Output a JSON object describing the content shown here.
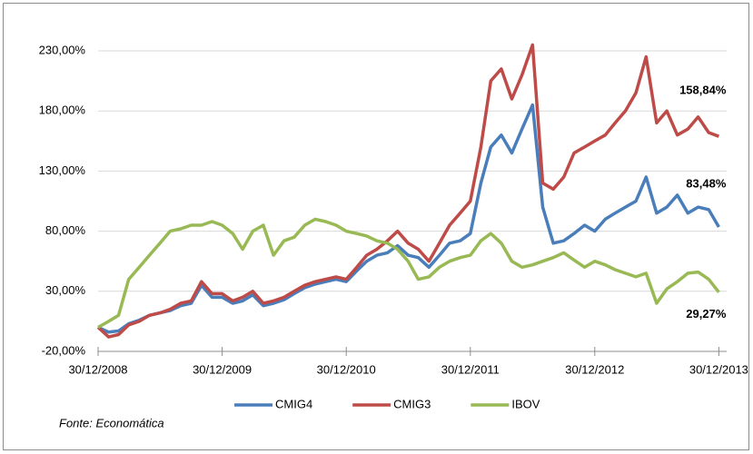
{
  "chart_data": {
    "type": "line",
    "x": [
      "2008-12-30",
      "2009-01-30",
      "2009-02-28",
      "2009-03-30",
      "2009-04-30",
      "2009-05-30",
      "2009-06-30",
      "2009-07-30",
      "2009-08-30",
      "2009-09-30",
      "2009-10-30",
      "2009-11-30",
      "2009-12-30",
      "2010-01-30",
      "2010-02-28",
      "2010-03-30",
      "2010-04-30",
      "2010-05-30",
      "2010-06-30",
      "2010-07-30",
      "2010-08-30",
      "2010-09-30",
      "2010-10-30",
      "2010-11-30",
      "2010-12-30",
      "2011-01-30",
      "2011-02-28",
      "2011-03-30",
      "2011-04-30",
      "2011-05-30",
      "2011-06-30",
      "2011-07-30",
      "2011-08-30",
      "2011-09-30",
      "2011-10-30",
      "2011-11-30",
      "2011-12-30",
      "2012-01-30",
      "2012-02-28",
      "2012-03-30",
      "2012-04-30",
      "2012-05-30",
      "2012-06-30",
      "2012-07-30",
      "2012-08-30",
      "2012-09-30",
      "2012-10-30",
      "2012-11-30",
      "2012-12-30",
      "2013-01-30",
      "2013-02-28",
      "2013-03-30",
      "2013-04-30",
      "2013-05-30",
      "2013-06-30",
      "2013-07-30",
      "2013-08-30",
      "2013-09-30",
      "2013-10-30",
      "2013-11-30",
      "2013-12-30"
    ],
    "series": [
      {
        "name": "CMIG4",
        "color": "#4a7ebb",
        "end_label": "83,48%",
        "values": [
          0,
          -4,
          -3,
          3,
          6,
          10,
          12,
          14,
          18,
          20,
          35,
          25,
          25,
          20,
          22,
          27,
          18,
          20,
          23,
          28,
          33,
          36,
          38,
          40,
          38,
          47,
          55,
          60,
          62,
          68,
          60,
          58,
          50,
          60,
          70,
          72,
          78,
          120,
          150,
          160,
          145,
          165,
          185,
          100,
          70,
          72,
          78,
          85,
          80,
          90,
          95,
          100,
          105,
          125,
          95,
          100,
          110,
          95,
          100,
          98,
          83.48
        ]
      },
      {
        "name": "CMIG3",
        "color": "#be4b48",
        "end_label": "158,84%",
        "values": [
          0,
          -8,
          -6,
          2,
          5,
          10,
          12,
          15,
          20,
          22,
          38,
          28,
          28,
          22,
          25,
          30,
          20,
          22,
          25,
          30,
          35,
          38,
          40,
          42,
          40,
          50,
          60,
          65,
          72,
          80,
          70,
          65,
          55,
          70,
          85,
          95,
          105,
          150,
          205,
          215,
          190,
          210,
          235,
          120,
          115,
          125,
          145,
          150,
          155,
          160,
          170,
          180,
          195,
          225,
          170,
          180,
          160,
          165,
          175,
          162,
          158.84
        ]
      },
      {
        "name": "IBOV",
        "color": "#98b954",
        "end_label": "29,27%",
        "values": [
          0,
          5,
          10,
          40,
          50,
          60,
          70,
          80,
          82,
          85,
          85,
          88,
          85,
          78,
          65,
          80,
          85,
          60,
          72,
          75,
          85,
          90,
          88,
          85,
          80,
          78,
          76,
          72,
          70,
          65,
          55,
          40,
          42,
          50,
          55,
          58,
          60,
          72,
          78,
          70,
          55,
          50,
          52,
          55,
          58,
          62,
          56,
          50,
          55,
          52,
          48,
          45,
          42,
          45,
          20,
          32,
          38,
          45,
          46,
          40,
          29.27
        ]
      }
    ],
    "xlim": [
      "2008-12-30",
      "2014-01-22"
    ],
    "xticks": [
      {
        "value": "2008-12-30",
        "label": "30/12/2008"
      },
      {
        "value": "2009-12-30",
        "label": "30/12/2009"
      },
      {
        "value": "2010-12-30",
        "label": "30/12/2010"
      },
      {
        "value": "2011-12-30",
        "label": "30/12/2011"
      },
      {
        "value": "2012-12-30",
        "label": "30/12/2012"
      },
      {
        "value": "2013-12-30",
        "label": "30/12/2013"
      }
    ],
    "ylim": [
      -20,
      250
    ],
    "yticks": [
      {
        "value": -20,
        "label": "-20,00%"
      },
      {
        "value": 30,
        "label": "30,00%"
      },
      {
        "value": 80,
        "label": "80,00%"
      },
      {
        "value": 130,
        "label": "130,00%"
      },
      {
        "value": 180,
        "label": "180,00%"
      },
      {
        "value": 230,
        "label": "230,00%"
      }
    ],
    "grid": true,
    "legend": "bottom",
    "source": "Fonte: Economática"
  }
}
